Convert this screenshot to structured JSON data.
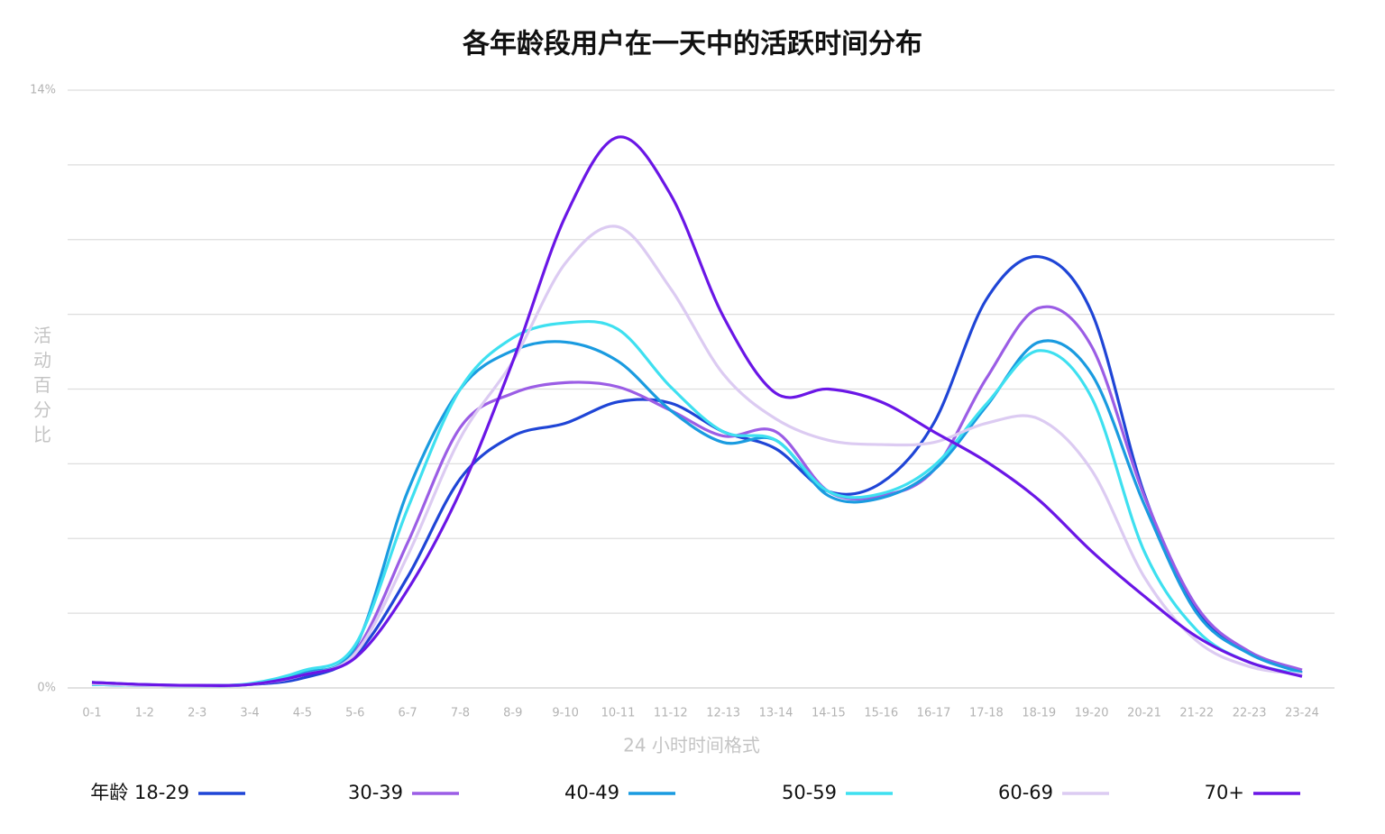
{
  "chart_data": {
    "type": "line",
    "title": "各年龄段用户在一天中的活跃时间分布",
    "x_label": "24 小时时间格式",
    "y_label": "活动百分比",
    "categories": [
      "0-1",
      "1-2",
      "2-3",
      "3-4",
      "4-5",
      "5-6",
      "6-7",
      "7-8",
      "8-9",
      "9-10",
      "10-11",
      "11-12",
      "12-13",
      "13-14",
      "14-15",
      "15-16",
      "16-17",
      "17-18",
      "18-19",
      "19-20",
      "20-21",
      "21-22",
      "22-23",
      "23-24"
    ],
    "ylim": [
      0,
      14
    ],
    "yticks": [
      {
        "value": 0,
        "label": "0%"
      },
      {
        "value": 1.75,
        "label": null
      },
      {
        "value": 3.5,
        "label": null
      },
      {
        "value": 5.25,
        "label": null
      },
      {
        "value": 7,
        "label": null
      },
      {
        "value": 8.75,
        "label": null
      },
      {
        "value": 10.5,
        "label": null
      },
      {
        "value": 12.25,
        "label": null
      },
      {
        "value": 14,
        "label": "14%"
      }
    ],
    "grid": true,
    "legend": "bottom",
    "series": [
      {
        "name": "年龄 18-29",
        "color": "#1f45d6",
        "values": [
          0.13,
          0.08,
          0.06,
          0.08,
          0.23,
          0.76,
          2.6,
          4.9,
          5.9,
          6.2,
          6.7,
          6.67,
          6.0,
          5.6,
          4.6,
          4.8,
          6.2,
          9.1,
          10.1,
          8.8,
          4.55,
          1.85,
          0.82,
          0.36
        ]
      },
      {
        "name": "30-39",
        "color": "#9b5de5",
        "values": [
          0.08,
          0.06,
          0.05,
          0.08,
          0.3,
          0.85,
          3.4,
          6.1,
          6.9,
          7.15,
          7.05,
          6.5,
          5.9,
          6.0,
          4.6,
          4.5,
          5.1,
          7.25,
          8.9,
          8.0,
          4.5,
          1.9,
          0.85,
          0.42
        ]
      },
      {
        "name": "40-49",
        "color": "#1a9be0",
        "values": [
          0.08,
          0.06,
          0.05,
          0.08,
          0.35,
          0.95,
          4.6,
          7.0,
          7.9,
          8.1,
          7.65,
          6.5,
          5.75,
          5.8,
          4.5,
          4.45,
          5.1,
          6.6,
          8.1,
          7.35,
          4.3,
          1.75,
          0.8,
          0.36
        ]
      },
      {
        "name": "50-59",
        "color": "#3ee0f0",
        "values": [
          0.08,
          0.06,
          0.05,
          0.1,
          0.4,
          1.0,
          4.2,
          7.0,
          8.2,
          8.55,
          8.4,
          7.05,
          6.0,
          5.8,
          4.6,
          4.55,
          5.2,
          6.65,
          7.9,
          6.8,
          3.2,
          1.35,
          0.6,
          0.32
        ]
      },
      {
        "name": "60-69",
        "color": "#dccbf2",
        "values": [
          0.1,
          0.06,
          0.05,
          0.08,
          0.3,
          0.8,
          3.1,
          5.85,
          7.65,
          9.95,
          10.8,
          9.35,
          7.35,
          6.3,
          5.8,
          5.7,
          5.75,
          6.2,
          6.3,
          5.1,
          2.6,
          1.1,
          0.5,
          0.32
        ]
      },
      {
        "name": "70+",
        "color": "#6a16e6",
        "values": [
          0.13,
          0.08,
          0.06,
          0.08,
          0.3,
          0.7,
          2.3,
          4.6,
          7.65,
          11.05,
          12.9,
          11.55,
          8.7,
          6.9,
          7.0,
          6.7,
          6.0,
          5.3,
          4.4,
          3.2,
          2.15,
          1.2,
          0.6,
          0.27
        ]
      }
    ]
  }
}
